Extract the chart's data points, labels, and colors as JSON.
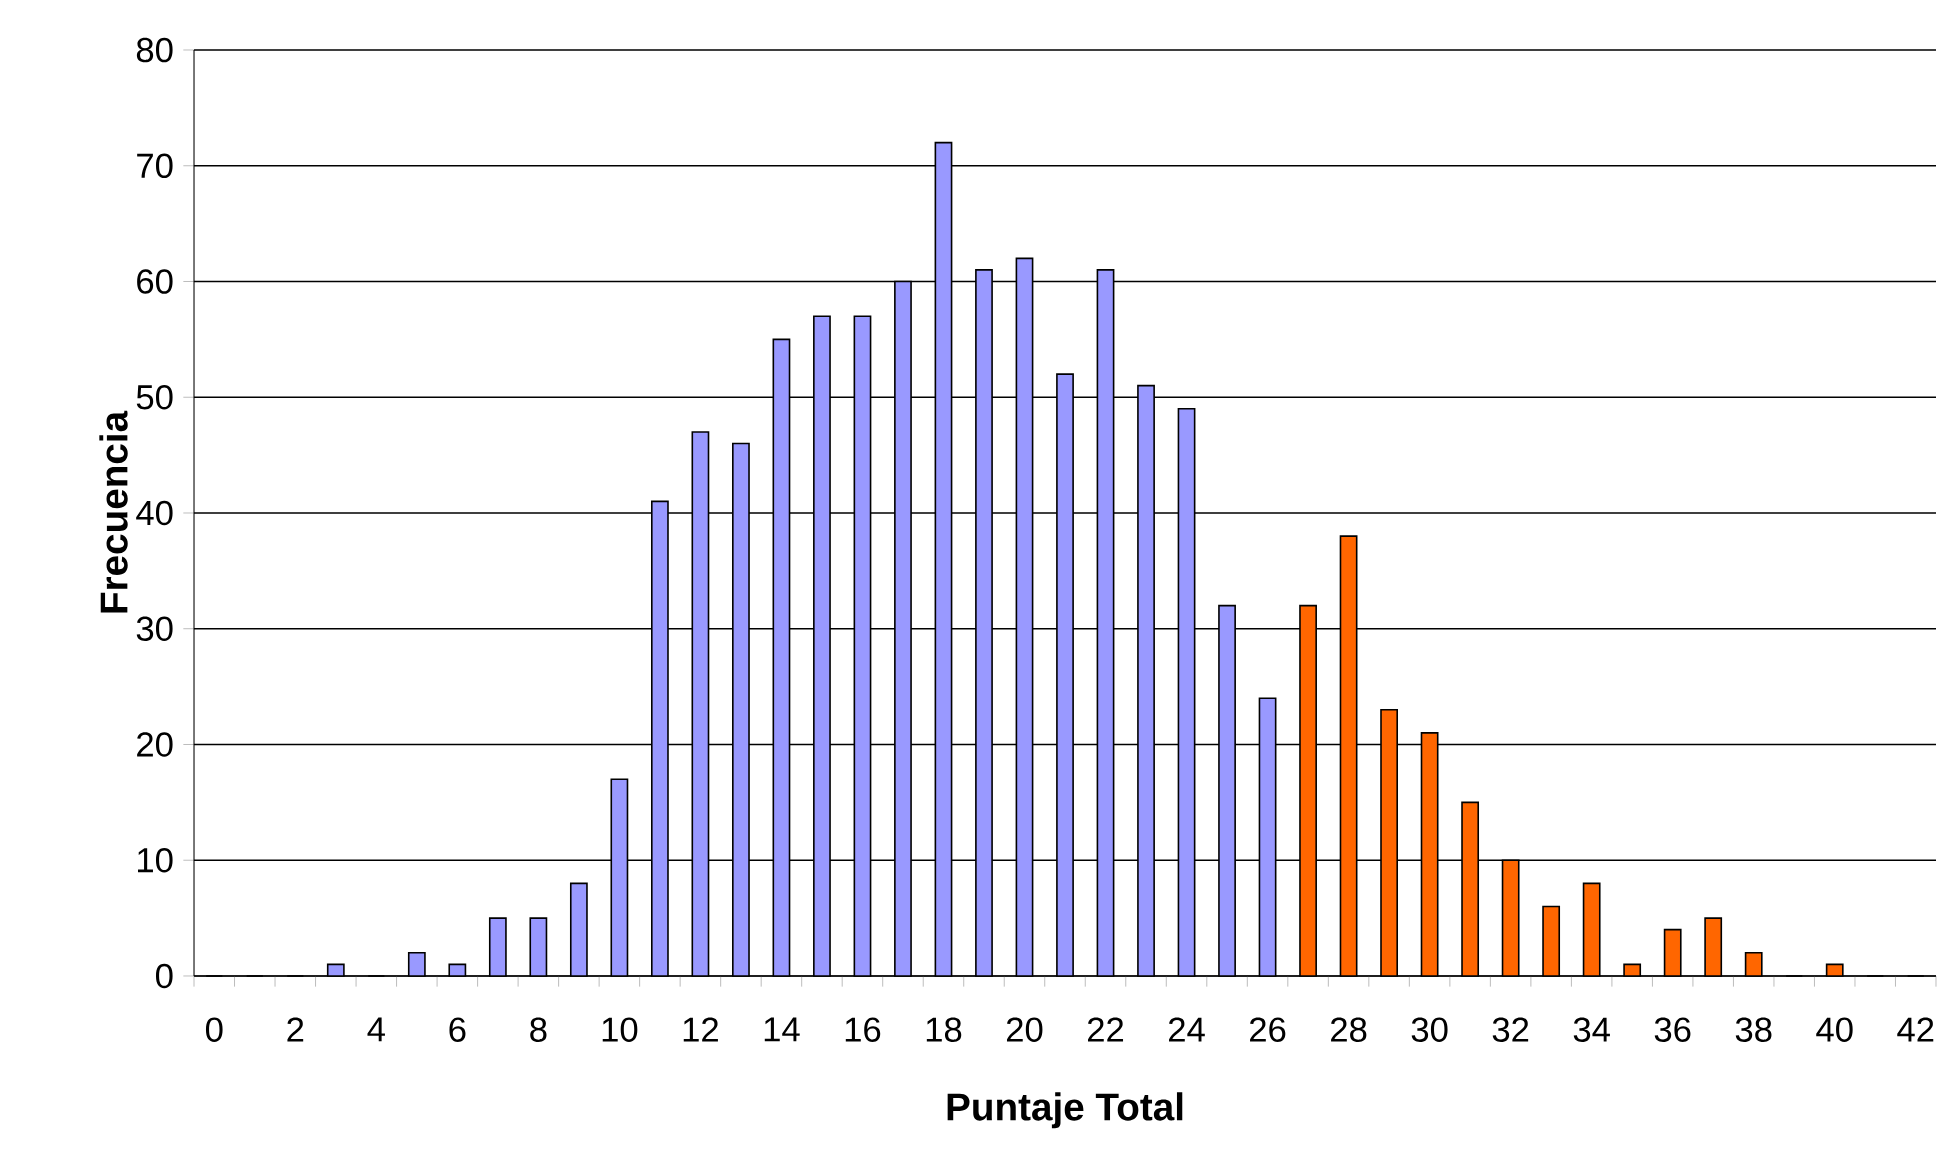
{
  "chart_data": {
    "type": "bar",
    "xlabel": "Puntaje Total",
    "ylabel": "Frecuencia",
    "categories": [
      "0",
      null,
      "2",
      null,
      "4",
      null,
      "6",
      null,
      "8",
      null,
      "10",
      null,
      "12",
      null,
      "14",
      null,
      "16",
      null,
      "18",
      null,
      "20",
      null,
      "22",
      null,
      "24",
      null,
      "26",
      null,
      "28",
      null,
      "30",
      null,
      "32",
      null,
      "34",
      null,
      "36",
      null,
      "38",
      null,
      "40",
      null,
      "42"
    ],
    "values": [
      0,
      0,
      0,
      1,
      0,
      2,
      1,
      5,
      5,
      8,
      17,
      41,
      47,
      46,
      55,
      57,
      57,
      60,
      72,
      61,
      62,
      52,
      61,
      51,
      49,
      32,
      24,
      32,
      38,
      23,
      21,
      15,
      10,
      6,
      8,
      1,
      4,
      5,
      2,
      0,
      1,
      0,
      0
    ],
    "colors": [
      "#9999ff",
      "#9999ff",
      "#9999ff",
      "#9999ff",
      "#9999ff",
      "#9999ff",
      "#9999ff",
      "#9999ff",
      "#9999ff",
      "#9999ff",
      "#9999ff",
      "#9999ff",
      "#9999ff",
      "#9999ff",
      "#9999ff",
      "#9999ff",
      "#9999ff",
      "#9999ff",
      "#9999ff",
      "#9999ff",
      "#9999ff",
      "#9999ff",
      "#9999ff",
      "#9999ff",
      "#9999ff",
      "#9999ff",
      "#9999ff",
      "#ff6600",
      "#ff6600",
      "#ff6600",
      "#ff6600",
      "#ff6600",
      "#ff6600",
      "#ff6600",
      "#ff6600",
      "#ff6600",
      "#ff6600",
      "#ff6600",
      "#ff6600",
      "#ff6600",
      "#ff6600",
      "#ff6600",
      "#ff6600"
    ],
    "ylim": [
      0,
      80
    ],
    "yticks": [
      0,
      10,
      20,
      30,
      40,
      50,
      60,
      70,
      80
    ],
    "grid": "y"
  }
}
